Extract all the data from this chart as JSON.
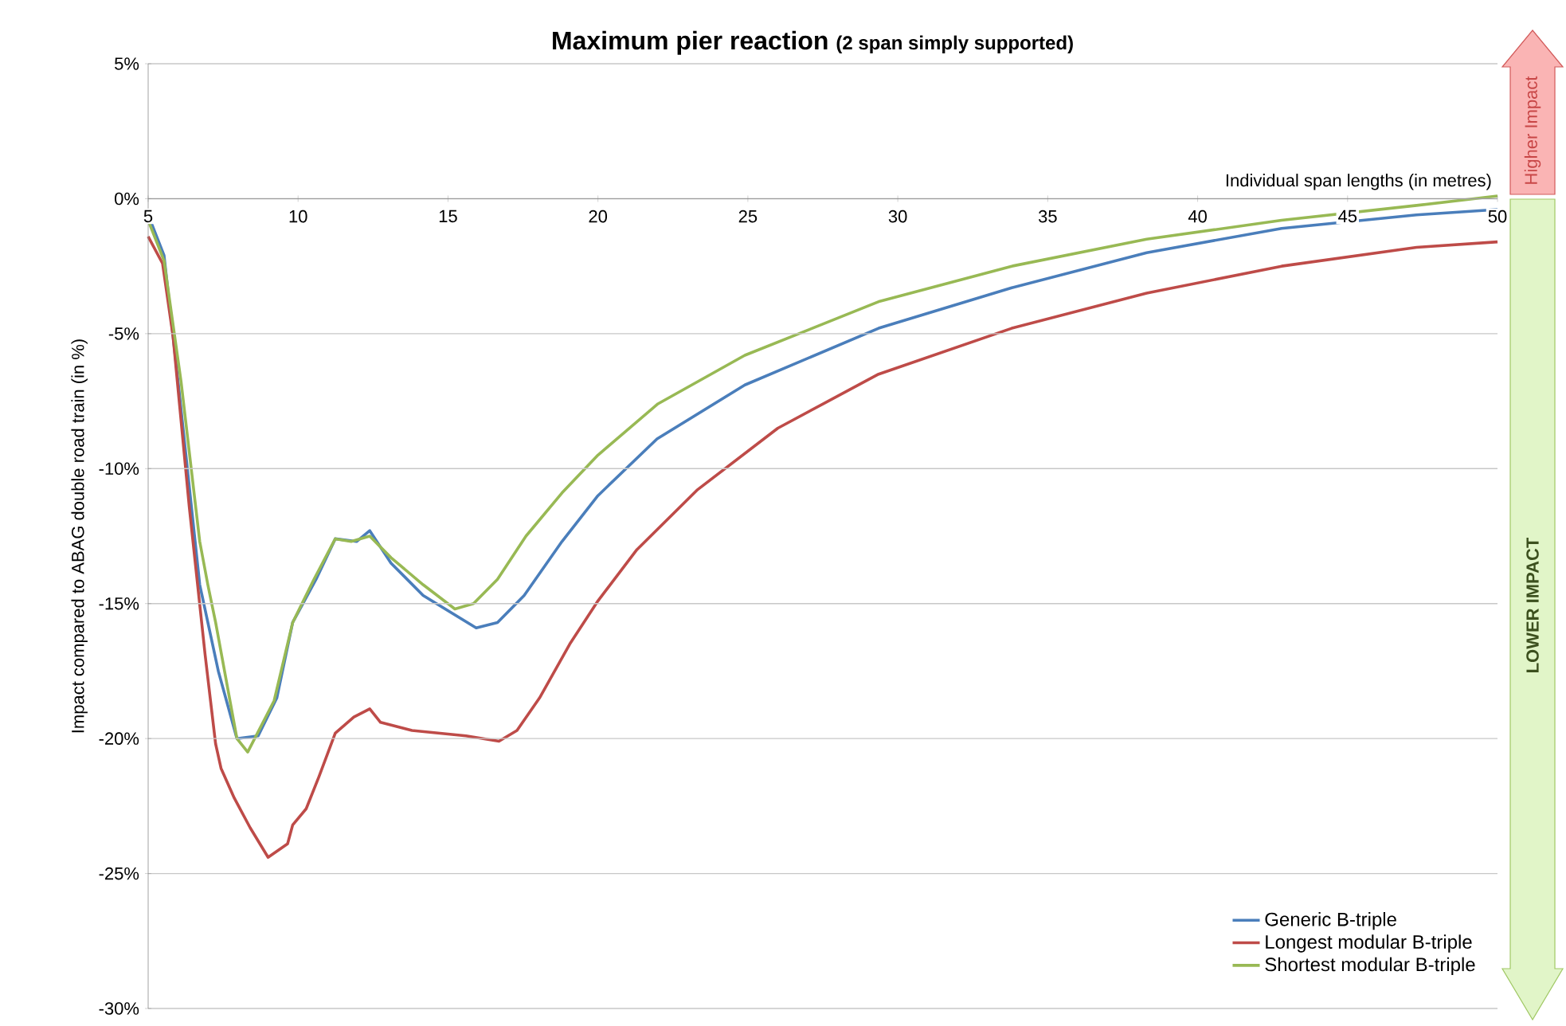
{
  "chart_data": {
    "type": "line",
    "title": "Maximum pier reaction",
    "subtitle": "(2 span simply supported)",
    "xlabel": "Individual span lengths (in metres)",
    "ylabel": "Impact compared to ABAG double road train (in %)",
    "annotations": [
      "Higher Impact",
      "LOWER IMPACT"
    ],
    "xlim": [
      5,
      50
    ],
    "ylim": [
      -30,
      5
    ],
    "xticks": [
      5,
      10,
      15,
      20,
      25,
      30,
      35,
      40,
      45,
      50
    ],
    "yticks": [
      {
        "value": -30,
        "label": "-30%"
      },
      {
        "value": -25,
        "label": "-25%"
      },
      {
        "value": -20,
        "label": "-20%"
      },
      {
        "value": -15,
        "label": "-15%"
      },
      {
        "value": -10,
        "label": "-10%"
      },
      {
        "value": -5,
        "label": "-5%"
      },
      {
        "value": 0,
        "label": "0%"
      },
      {
        "value": 5,
        "label": "5%"
      }
    ],
    "grid": "y",
    "legend": "bottom right",
    "marker": "none",
    "line_style": "solid",
    "series": [
      {
        "name": "Generic B-triple",
        "color": "#4a7ebb",
        "x": [
          5,
          5.53,
          6.0,
          6.72,
          7.34,
          7.96,
          8.67,
          9.29,
          9.82,
          10.6,
          11.24,
          11.95,
          12.39,
          13.1,
          14.17,
          15.94,
          16.65,
          17.54,
          18.8,
          20,
          21.97,
          24.9,
          29.36,
          33.8,
          38.3,
          42.8,
          47.3,
          50
        ],
        "values": [
          -0.6,
          -2.1,
          -6.8,
          -14.3,
          -17.5,
          -20.0,
          -19.9,
          -18.5,
          -15.7,
          -14.1,
          -12.6,
          -12.7,
          -12.3,
          -13.5,
          -14.7,
          -15.9,
          -15.7,
          -14.7,
          -12.7,
          -11.0,
          -8.9,
          -6.9,
          -4.8,
          -3.3,
          -2.0,
          -1.1,
          -0.6,
          -0.4
        ]
      },
      {
        "name": "Longest modular B-triple",
        "color": "#be4b48",
        "x": [
          5,
          5.48,
          5.83,
          6.37,
          6.9,
          7.25,
          7.43,
          7.87,
          8.4,
          9.0,
          9.65,
          9.82,
          10.27,
          10.7,
          11.24,
          11.86,
          12.39,
          12.75,
          13.8,
          15.6,
          16.7,
          17.3,
          18.05,
          19.06,
          20,
          21.3,
          23.3,
          26,
          29.36,
          33.8,
          38.3,
          42.8,
          47.3,
          50
        ],
        "values": [
          -1.4,
          -2.4,
          -5.1,
          -11.4,
          -16.9,
          -20.2,
          -21.1,
          -22.2,
          -23.3,
          -24.4,
          -23.9,
          -23.2,
          -22.6,
          -21.4,
          -19.8,
          -19.2,
          -18.9,
          -19.4,
          -19.7,
          -19.9,
          -20.1,
          -19.7,
          -18.5,
          -16.5,
          -14.9,
          -13.0,
          -10.8,
          -8.5,
          -6.5,
          -4.8,
          -3.5,
          -2.5,
          -1.8,
          -1.6
        ]
      },
      {
        "name": "Shortest modular B-triple",
        "color": "#98b954",
        "x": [
          5,
          5.53,
          6.1,
          6.72,
          6.99,
          7.25,
          7.96,
          8.32,
          9.2,
          9.82,
          10.53,
          11.24,
          11.77,
          12.39,
          13.1,
          14.17,
          15.23,
          15.85,
          16.65,
          17.6,
          18.8,
          20,
          22,
          24.9,
          29.4,
          33.8,
          38.3,
          42.8,
          47.3,
          50
        ],
        "values": [
          -0.8,
          -2.3,
          -6.8,
          -12.7,
          -14.3,
          -15.7,
          -20.0,
          -20.5,
          -18.6,
          -15.7,
          -14.1,
          -12.6,
          -12.7,
          -12.5,
          -13.3,
          -14.3,
          -15.2,
          -15.0,
          -14.1,
          -12.5,
          -10.9,
          -9.5,
          -7.6,
          -5.8,
          -3.8,
          -2.5,
          -1.5,
          -0.8,
          -0.25,
          0.1
        ]
      }
    ]
  }
}
